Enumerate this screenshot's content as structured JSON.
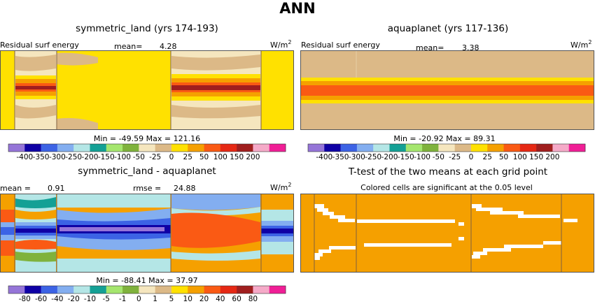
{
  "title": "ANN",
  "colors": {
    "frame": "#555555",
    "divider": "#806040"
  },
  "chart_data": [
    {
      "type": "heatmap",
      "title": "symmetric_land (yrs 174-193)",
      "left_label": "Residual surf energy",
      "mean_label": "mean=",
      "mean_value": "4.28",
      "units": "W/m",
      "units_sup": "2",
      "min_label": "Min =",
      "min_value": "-49.59",
      "max_label": "Max =",
      "max_value": "121.16"
    },
    {
      "type": "heatmap",
      "title": "aquaplanet (yrs 117-136)",
      "left_label": "Residual surf energy",
      "mean_label": "mean=",
      "mean_value": "3.38",
      "units": "W/m",
      "units_sup": "2",
      "min_label": "Min =",
      "min_value": "-20.92",
      "max_label": "Max =",
      "max_value": "89.31"
    },
    {
      "type": "heatmap",
      "title": "symmetric_land - aquaplanet",
      "mean_label": "mean =",
      "mean_value": "0.91",
      "rmse_label": "rmse =",
      "rmse_value": "24.88",
      "units": "W/m",
      "units_sup": "2",
      "min_label": "Min =",
      "min_value": "-88.41",
      "max_label": "Max =",
      "max_value": "37.97"
    },
    {
      "type": "heatmap",
      "title": "T-test of the two means at each grid point",
      "subtitle": "Colored cells are significant at the 0.05 level",
      "fill_color": "#f5a000"
    }
  ],
  "colorbar_top": {
    "colors": [
      "#9575d8",
      "#0f00a5",
      "#3c63e5",
      "#83aef0",
      "#b4e6e6",
      "#14a095",
      "#a5e66e",
      "#7fb23c",
      "#f5e6be",
      "#dcb987",
      "#ffe100",
      "#f5a000",
      "#fa5a14",
      "#e62814",
      "#a01e1e",
      "#f5aac8",
      "#f01e96"
    ],
    "ticks": [
      "-400",
      "-350",
      "-300",
      "-250",
      "-200",
      "-150",
      "-100",
      "-50",
      "-25",
      "0",
      "25",
      "50",
      "100",
      "150",
      "200"
    ]
  },
  "colorbar_bottom": {
    "colors": [
      "#9575d8",
      "#0f00a5",
      "#3c63e5",
      "#83aef0",
      "#b4e6e6",
      "#14a095",
      "#a5e66e",
      "#7fb23c",
      "#f5e6be",
      "#dcb987",
      "#ffe100",
      "#f5a000",
      "#fa5a14",
      "#e62814",
      "#a01e1e",
      "#f5aac8",
      "#f01e96"
    ],
    "ticks": [
      "-80",
      "-60",
      "-40",
      "-20",
      "-10",
      "-5",
      "-1",
      "0",
      "1",
      "5",
      "10",
      "20",
      "40",
      "60",
      "80"
    ]
  }
}
